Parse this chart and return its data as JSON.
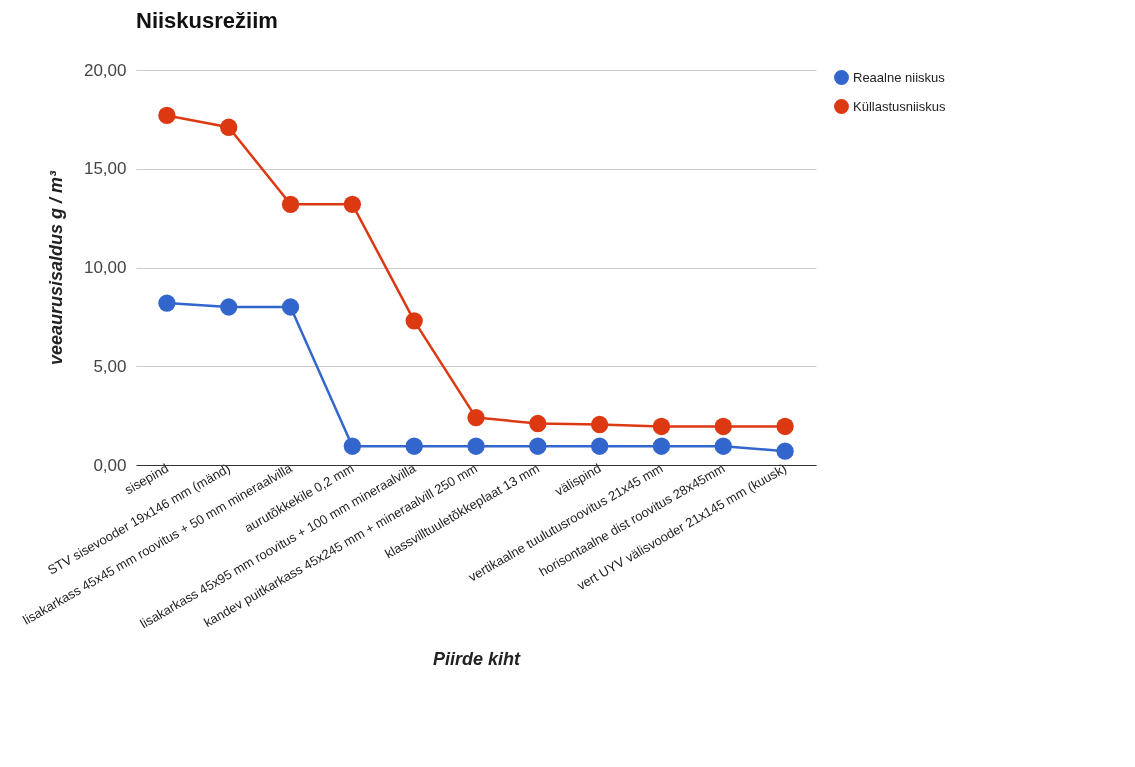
{
  "chart_data": {
    "type": "line",
    "title": "Niiskusrežiim",
    "xlabel": "Piirde kiht",
    "ylabel": "veeaurusisaldus g / m³",
    "categories": [
      "sisepind",
      "STV sisevooder 19x146 mm (mänd)",
      "lisakarkass 45x45 mm roovitus + 50 mm mineraalvilla",
      "aurutõkkekile 0,2 mm",
      "lisakarkass 45x95 mm roovitus + 100 mm mineraalvilla",
      "kandev puitkarkass 45x245 mm + mineraalvill 250 mm",
      "klassvilltuuletõkkeplaat 13 mm",
      "välispind",
      "vertikaalne tuulutusroovitus 21x45 mm",
      "horisontaalne dist roovitus 28x45mm",
      "vert UYV välisvooder 21x145 mm (kuusk)"
    ],
    "series": [
      {
        "name": "Reaalne niiskus",
        "color": "#3366cc",
        "values": [
          8.2,
          8.0,
          8.0,
          0.95,
          0.95,
          0.95,
          0.95,
          0.95,
          0.95,
          0.95,
          0.7
        ]
      },
      {
        "name": "Küllastusniiskus",
        "color": "#dc3912",
        "values": [
          17.7,
          17.1,
          13.2,
          13.2,
          7.3,
          2.4,
          2.1,
          2.05,
          1.95,
          1.95,
          1.95
        ]
      }
    ],
    "ylim": [
      0,
      20
    ],
    "yticks": [
      {
        "value": 0,
        "label": "0,00"
      },
      {
        "value": 5,
        "label": "5,00"
      },
      {
        "value": 10,
        "label": "10,00"
      },
      {
        "value": 15,
        "label": "15,00"
      },
      {
        "value": 20,
        "label": "20,00"
      }
    ],
    "grid": "y",
    "legend": "top right",
    "marker": "circle",
    "line_style": "solid"
  }
}
